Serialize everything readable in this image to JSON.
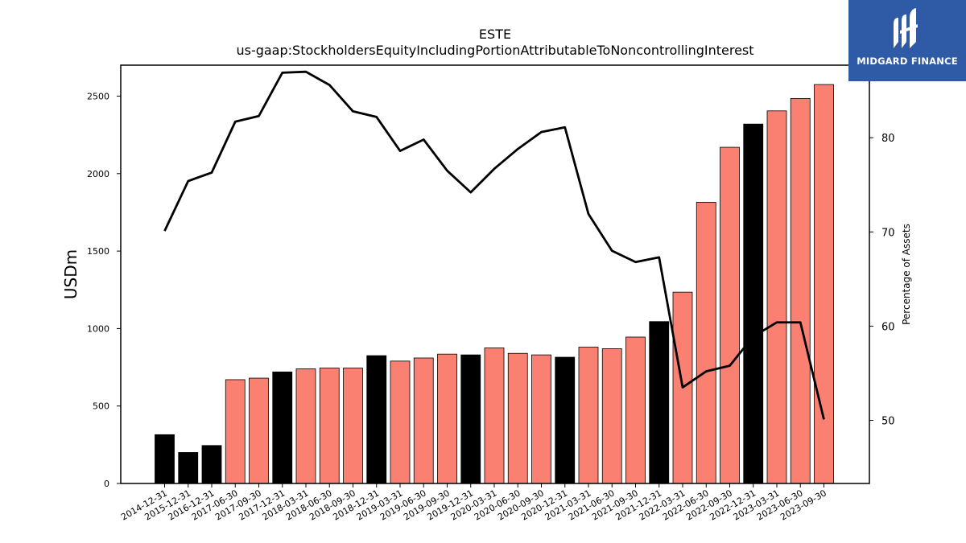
{
  "chart_data": {
    "type": "bar",
    "title": "ESTE",
    "subtitle": "us-gaap:StockholdersEquityIncludingPortionAttributableToNoncontrollingInterest",
    "ylabel": "USDm",
    "y2label": "Percentage of Assets",
    "ylim": [
      0,
      2700
    ],
    "y2lim": [
      43.3,
      87.7
    ],
    "yticks": [
      0,
      500,
      1000,
      1500,
      2000,
      2500
    ],
    "y2ticks": [
      50,
      60,
      70,
      80
    ],
    "grid": false,
    "categories": [
      "2014-12-31",
      "2015-12-31",
      "2016-12-31",
      "2017-06-30",
      "2017-09-30",
      "2017-12-31",
      "2018-03-31",
      "2018-06-30",
      "2018-09-30",
      "2018-12-31",
      "2019-03-31",
      "2019-06-30",
      "2019-09-30",
      "2019-12-31",
      "2020-03-31",
      "2020-06-30",
      "2020-09-30",
      "2020-12-31",
      "2021-03-31",
      "2021-06-30",
      "2021-09-30",
      "2021-12-31",
      "2022-03-31",
      "2022-06-30",
      "2022-09-30",
      "2022-12-31",
      "2023-03-31",
      "2023-06-30",
      "2023-09-30"
    ],
    "series": [
      {
        "type": "bar",
        "axis": "left",
        "values": [
          315,
          200,
          245,
          670,
          680,
          720,
          740,
          745,
          745,
          825,
          790,
          810,
          835,
          830,
          875,
          840,
          830,
          815,
          880,
          870,
          945,
          1045,
          1235,
          1815,
          2170,
          2320,
          2405,
          2485,
          2575
        ],
        "colors": [
          "#000000",
          "#000000",
          "#000000",
          "#fa8072",
          "#fa8072",
          "#000000",
          "#fa8072",
          "#fa8072",
          "#fa8072",
          "#000000",
          "#fa8072",
          "#fa8072",
          "#fa8072",
          "#000000",
          "#fa8072",
          "#fa8072",
          "#fa8072",
          "#000000",
          "#fa8072",
          "#fa8072",
          "#fa8072",
          "#000000",
          "#fa8072",
          "#fa8072",
          "#fa8072",
          "#000000",
          "#fa8072",
          "#fa8072",
          "#fa8072"
        ]
      },
      {
        "type": "line",
        "axis": "right",
        "color": "#000000",
        "values": [
          70.1,
          75.4,
          76.3,
          81.7,
          82.3,
          86.9,
          87.0,
          85.6,
          82.8,
          82.2,
          78.6,
          79.8,
          76.5,
          74.2,
          76.7,
          78.8,
          80.6,
          81.1,
          71.9,
          68.0,
          66.8,
          67.3,
          53.5,
          55.2,
          55.8,
          58.9,
          60.4,
          60.4,
          50.1
        ]
      }
    ]
  },
  "brand": {
    "name": "MIDGARD FINANCE",
    "background": "#2f5aa6"
  }
}
